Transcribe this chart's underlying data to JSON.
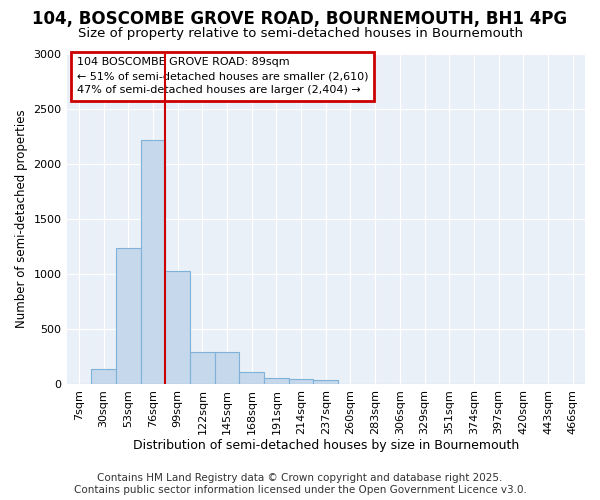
{
  "title1": "104, BOSCOMBE GROVE ROAD, BOURNEMOUTH, BH1 4PG",
  "title2": "Size of property relative to semi-detached houses in Bournemouth",
  "xlabel": "Distribution of semi-detached houses by size in Bournemouth",
  "ylabel": "Number of semi-detached properties",
  "bin_labels": [
    "7sqm",
    "30sqm",
    "53sqm",
    "76sqm",
    "99sqm",
    "122sqm",
    "145sqm",
    "168sqm",
    "191sqm",
    "214sqm",
    "237sqm",
    "260sqm",
    "283sqm",
    "306sqm",
    "329sqm",
    "351sqm",
    "374sqm",
    "397sqm",
    "420sqm",
    "443sqm",
    "466sqm"
  ],
  "bar_values": [
    0,
    140,
    1240,
    2220,
    1030,
    290,
    290,
    110,
    55,
    50,
    35,
    0,
    0,
    0,
    0,
    0,
    0,
    0,
    0,
    0,
    0
  ],
  "bar_color": "#c5d8ec",
  "bar_edge_color": "#7fb2d9",
  "ylim": [
    0,
    3000
  ],
  "yticks": [
    0,
    500,
    1000,
    1500,
    2000,
    2500,
    3000
  ],
  "property_line_color": "#cc0000",
  "annotation_line1": "104 BOSCOMBE GROVE ROAD: 89sqm",
  "annotation_line2": "← 51% of semi-detached houses are smaller (2,610)",
  "annotation_line3": "47% of semi-detached houses are larger (2,404) →",
  "annotation_box_color": "#cc0000",
  "footer1": "Contains HM Land Registry data © Crown copyright and database right 2025.",
  "footer2": "Contains public sector information licensed under the Open Government Licence v3.0.",
  "bg_color": "#ffffff",
  "plot_bg_color": "#eaf0f8",
  "grid_color": "#ffffff",
  "title1_fontsize": 12,
  "title2_fontsize": 9.5,
  "ylabel_fontsize": 8.5,
  "xlabel_fontsize": 9,
  "tick_fontsize": 8,
  "footer_fontsize": 7.5
}
